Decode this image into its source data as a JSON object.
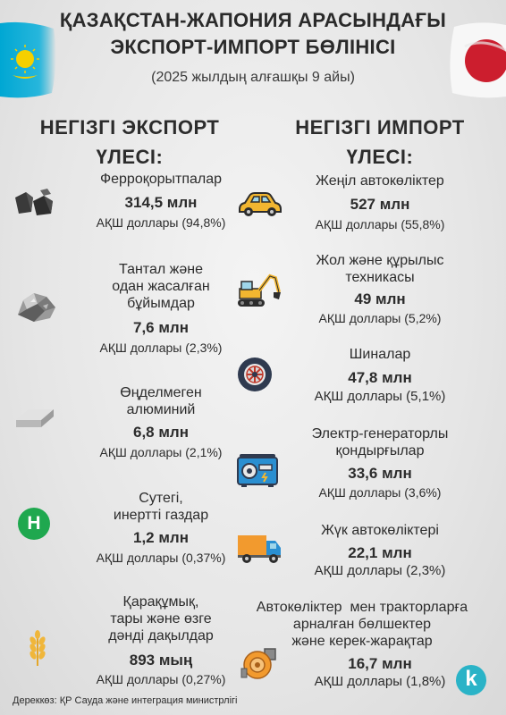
{
  "header": {
    "title_line1": "ҚАЗАҚСТАН-ЖАПОНИЯ АРАСЫНДАҒЫ",
    "title_line2": "ЭКСПОРТ-ИМПОРТ БӨЛІНІСІ",
    "subtitle": "(2025 жылдың алғашқы 9 айы)"
  },
  "export": {
    "heading_line1": "НЕГІЗГІ ЭКСПОРТ",
    "heading_line2": "ҮЛЕСІ:",
    "items": [
      {
        "name": [
          "Ферроқорытпалар"
        ],
        "value": "314,5 млн",
        "unit": "АҚШ доллары (94,8%)",
        "icon": "ferroalloy-icon"
      },
      {
        "name": [
          "Тантал және",
          "одан жасалған",
          "бұйымдар"
        ],
        "value": "7,6 млн",
        "unit": "АҚШ доллары (2,3%)",
        "icon": "tantalum-ore-icon"
      },
      {
        "name": [
          "Өңделмеген",
          "алюминий"
        ],
        "value": "6,8 млн",
        "unit": "АҚШ доллары (2,1%)",
        "icon": "aluminium-ingot-icon"
      },
      {
        "name": [
          "Сутегі,",
          "инертті газдар"
        ],
        "value": "1,2 млн",
        "unit": "АҚШ доллары (0,37%)",
        "icon": "hydrogen-icon",
        "icon_letter": "H"
      },
      {
        "name": [
          "Қарақұмық,",
          "тары және өзге",
          "дәнді дақылдар"
        ],
        "value": "893 мың",
        "unit": "АҚШ доллары (0,27%)",
        "icon": "wheat-icon"
      }
    ]
  },
  "import": {
    "heading_line1": "НЕГІЗГІ ИМПОРТ",
    "heading_line2": "ҮЛЕСІ:",
    "items": [
      {
        "name": [
          "Жеңіл автокөліктер"
        ],
        "value": "527 млн",
        "unit": "АҚШ доллары (55,8%)",
        "icon": "car-icon"
      },
      {
        "name": [
          "Жол және құрылыс",
          "техникасы"
        ],
        "value": "49 млн",
        "unit": "АҚШ доллары (5,2%)",
        "icon": "excavator-icon"
      },
      {
        "name": [
          "Шиналар"
        ],
        "value": "47,8 млн",
        "unit": "АҚШ доллары (5,1%)",
        "icon": "tire-icon"
      },
      {
        "name": [
          "Электр-генераторлы",
          "қондырғылар"
        ],
        "value": "33,6 млн",
        "unit": "АҚШ доллары (3,6%)",
        "icon": "generator-icon"
      },
      {
        "name": [
          "Жүк автокөліктері"
        ],
        "value": "22,1 млн",
        "unit": "АҚШ доллары (2,3%)",
        "icon": "truck-icon"
      },
      {
        "name": [
          "Автокөліктер  мен тракторларға",
          "арналған бөлшектер",
          "және керек-жарақтар"
        ],
        "value": "16,7 млн",
        "unit": "АҚШ доллары (1,8%)",
        "icon": "turbocharger-icon"
      }
    ]
  },
  "footer": {
    "source": "Дереккөз: ҚР Сауда және интеграция министрлігі",
    "logo_letter": "k"
  },
  "colors": {
    "kz_flag": "#00a7d3",
    "jp_red": "#cc1e2e",
    "hydrogen_green": "#1fa84f",
    "car_yellow": "#f2b630",
    "logo_teal": "#2ab3c7"
  }
}
